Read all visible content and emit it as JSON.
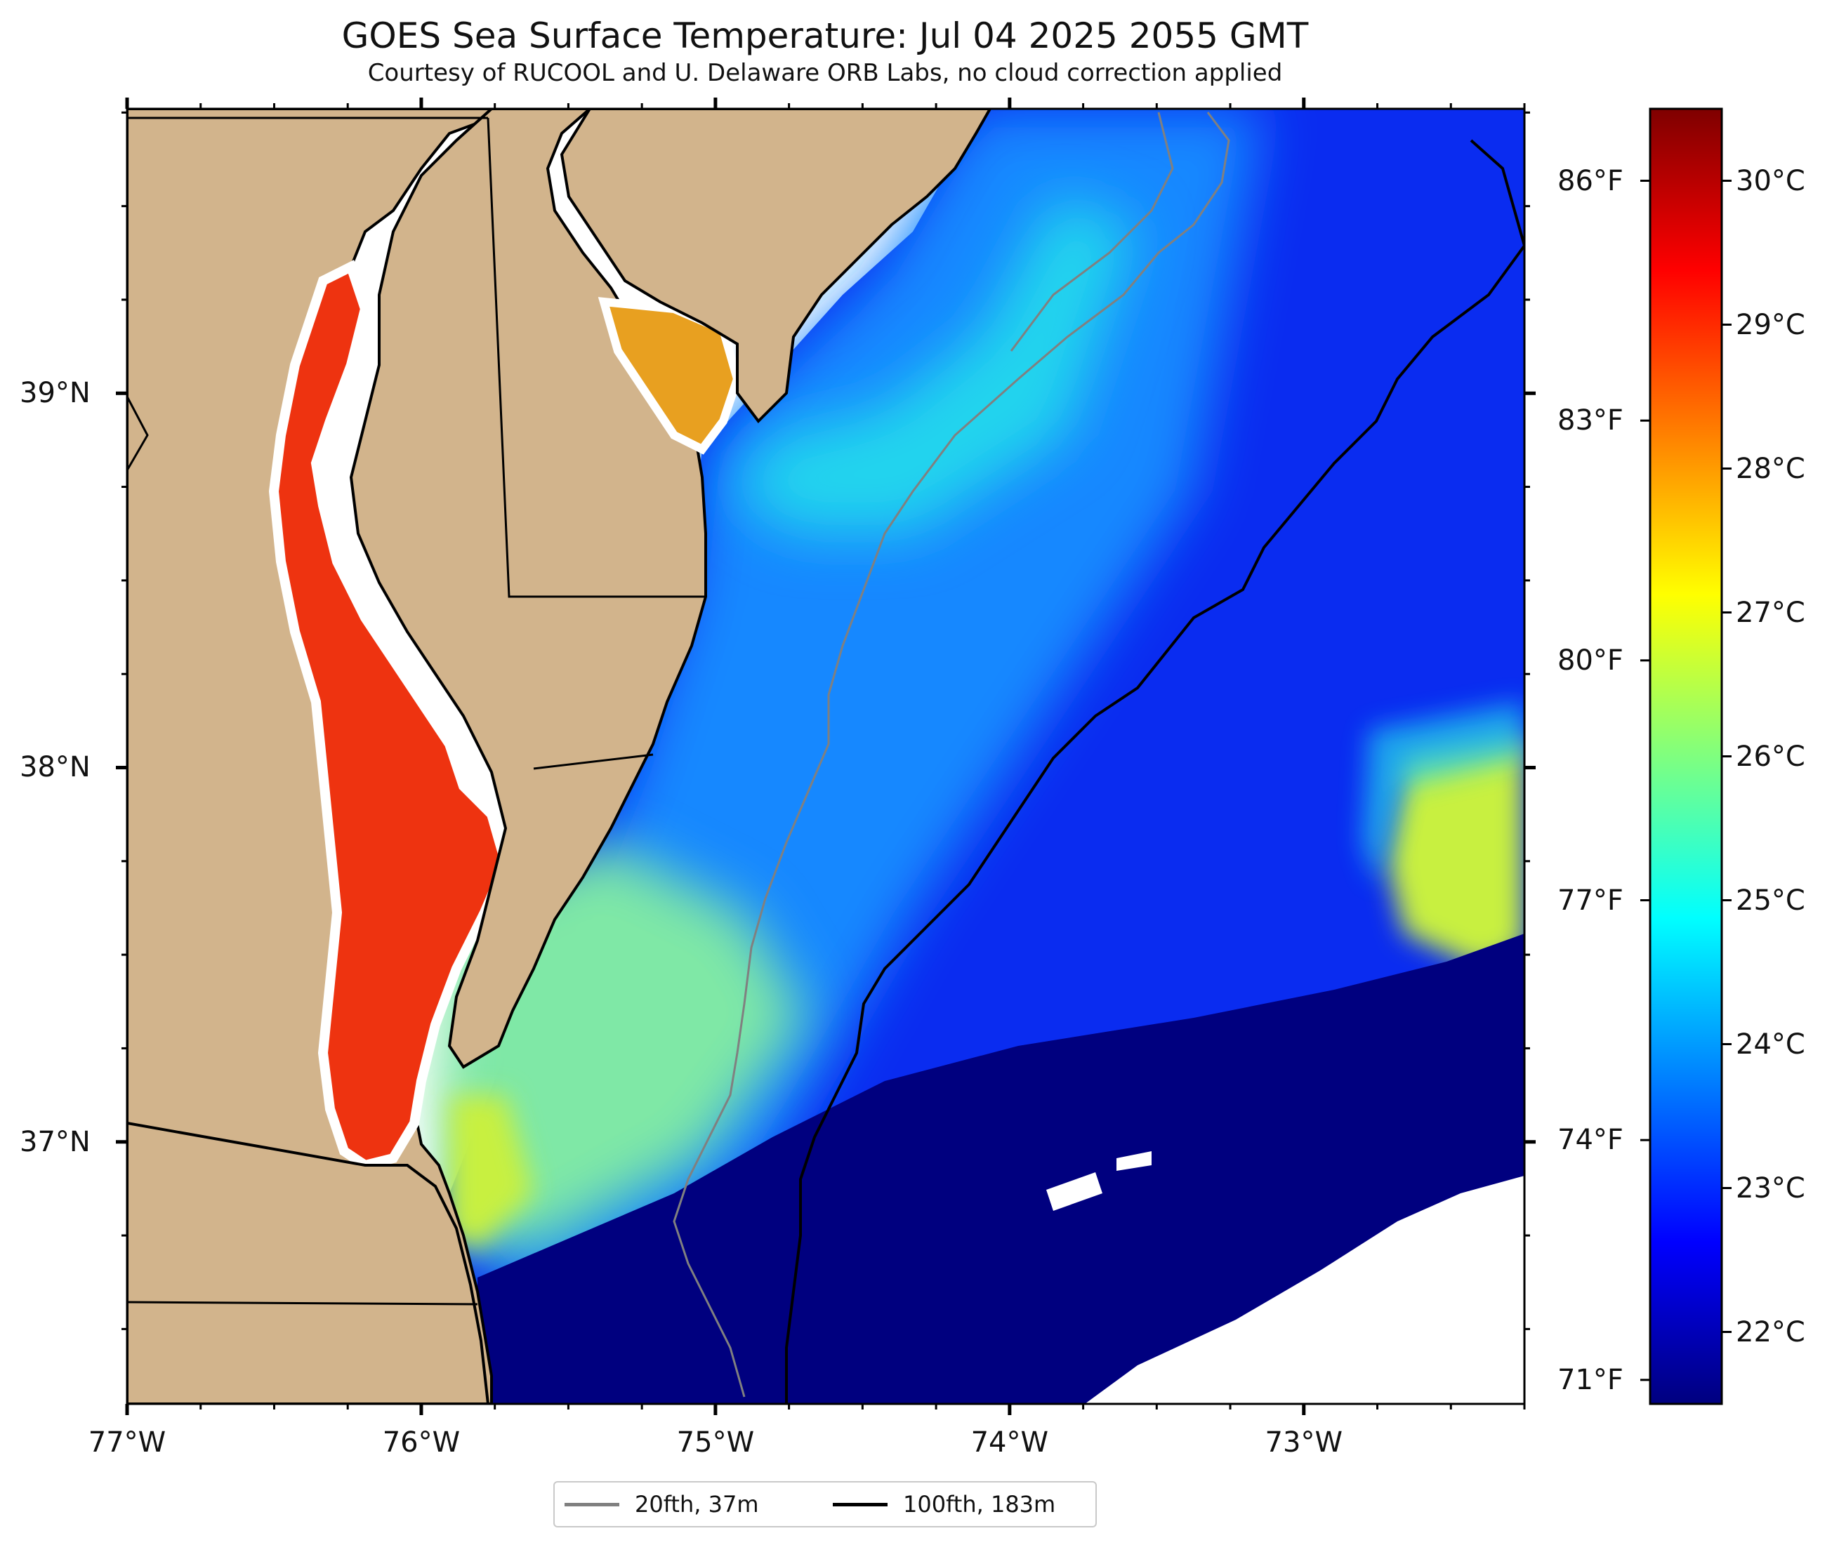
{
  "title": "GOES Sea Surface Temperature: Jul 04 2025 2055 GMT",
  "subtitle": "Courtesy of RUCOOL and U. Delaware ORB Labs, no cloud correction applied",
  "lon_ticks": [
    {
      "lon": -77,
      "label": "77°W"
    },
    {
      "lon": -76,
      "label": "76°W"
    },
    {
      "lon": -75,
      "label": "75°W"
    },
    {
      "lon": -74,
      "label": "74°W"
    },
    {
      "lon": -73,
      "label": "73°W"
    }
  ],
  "lat_ticks": [
    {
      "lat": 39,
      "label": "39°N"
    },
    {
      "lat": 38,
      "label": "38°N"
    },
    {
      "lat": 37,
      "label": "37°N"
    }
  ],
  "fahrenheit_ticks": [
    {
      "f": 86,
      "label": "86°F"
    },
    {
      "f": 83,
      "label": "83°F"
    },
    {
      "f": 80,
      "label": "80°F"
    },
    {
      "f": 77,
      "label": "77°F"
    },
    {
      "f": 74,
      "label": "74°F"
    },
    {
      "f": 71,
      "label": "71°F"
    }
  ],
  "colorbar": {
    "min_c": 21.5,
    "max_c": 30.5,
    "ticks": [
      {
        "c": 30,
        "label": "30°C"
      },
      {
        "c": 29,
        "label": "29°C"
      },
      {
        "c": 28,
        "label": "28°C"
      },
      {
        "c": 27,
        "label": "27°C"
      },
      {
        "c": 26,
        "label": "26°C"
      },
      {
        "c": 25,
        "label": "25°C"
      },
      {
        "c": 24,
        "label": "24°C"
      },
      {
        "c": 23,
        "label": "23°C"
      },
      {
        "c": 22,
        "label": "22°C"
      }
    ],
    "colors": [
      "#00007f",
      "#0000ff",
      "#007fff",
      "#00ffff",
      "#7fff7f",
      "#ffff00",
      "#ff7f00",
      "#ff0000",
      "#7f0000"
    ]
  },
  "extent": {
    "lon_min": -77,
    "lon_max": -72.25,
    "lat_min": 36.3,
    "lat_max": 39.76
  },
  "colors": {
    "land": "#d2b48c",
    "ocean_cold": "#00007f",
    "ocean_cool": "#0a2cf0",
    "ocean_mid": "#1488ff",
    "ocean_warm": "#22d4ee",
    "shelf_warm": "#7fe8a6",
    "southern_warm": "#c8f040",
    "bay": "#ee3310",
    "no_data": "#ffffff",
    "isobath_20": "#808080",
    "isobath_100": "#000000"
  },
  "legend": [
    {
      "label": "20fth, 37m",
      "color": "#808080"
    },
    {
      "label": "100fth, 183m",
      "color": "#000000"
    }
  ]
}
